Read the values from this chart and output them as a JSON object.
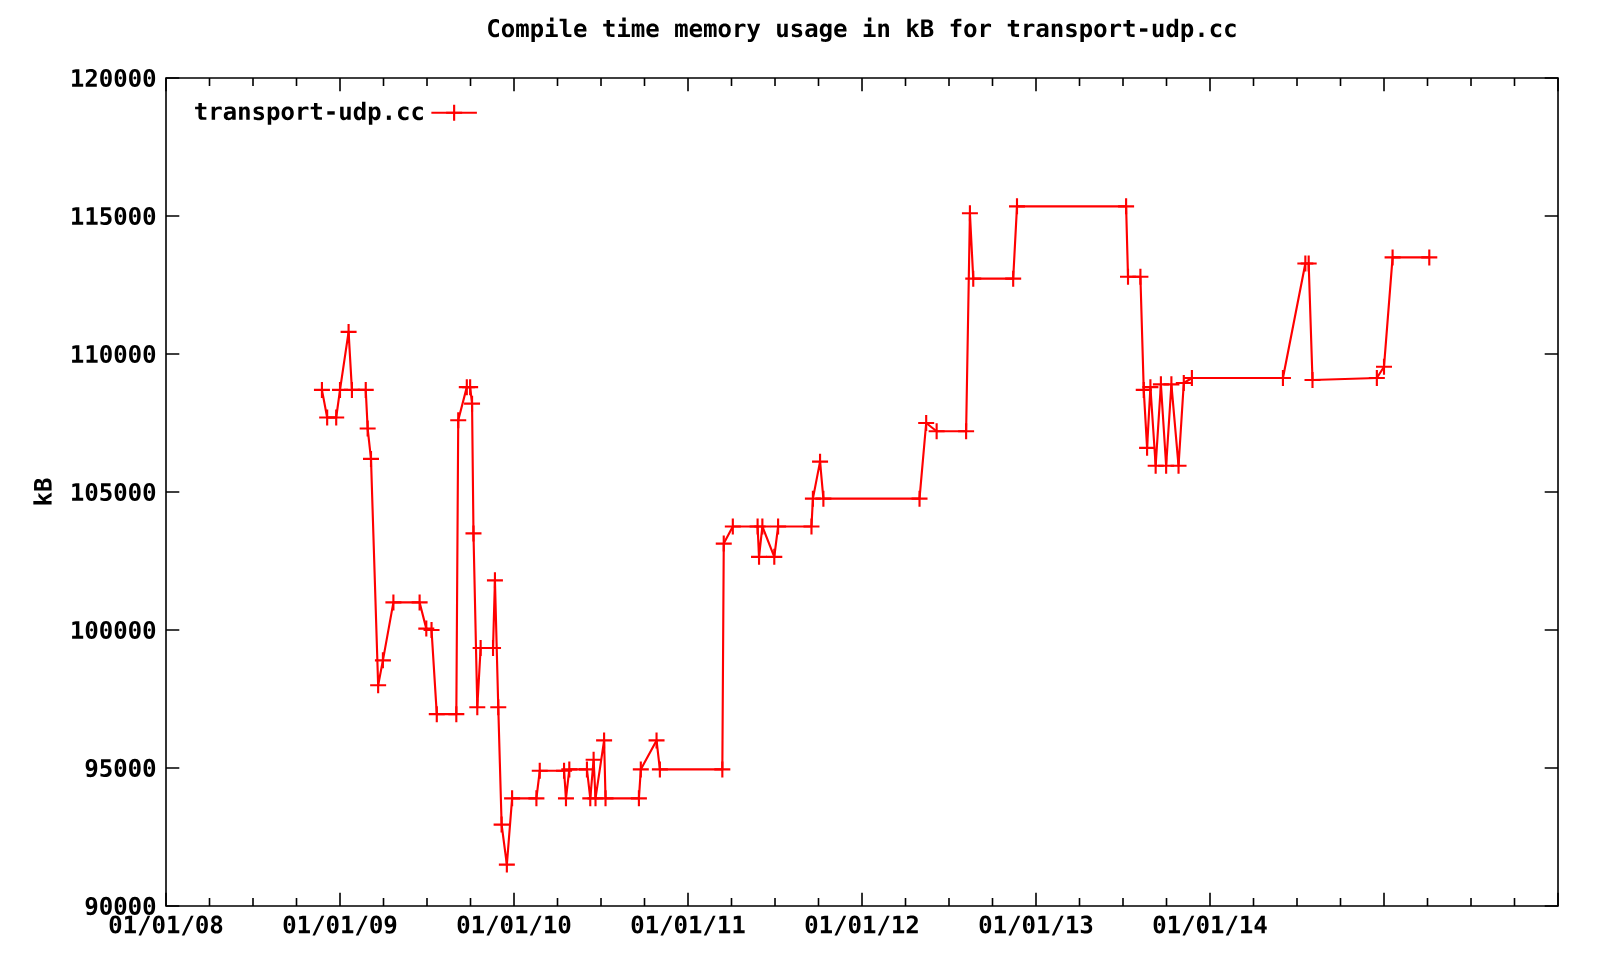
{
  "chart_data": {
    "type": "line",
    "title": "Compile time memory usage in kB for transport-udp.cc",
    "ylabel": "kB",
    "x": [
      "2008-11-24",
      "2008-12-05",
      "2008-12-24",
      "2009-01-01",
      "2009-01-19",
      "2009-01-26",
      "2009-02-24",
      "2009-02-28",
      "2009-03-07",
      "2009-03-22",
      "2009-04-01",
      "2009-04-23",
      "2009-06-17",
      "2009-07-01",
      "2009-07-12",
      "2009-07-23",
      "2009-09-02",
      "2009-09-06",
      "2009-09-24",
      "2009-10-01",
      "2009-10-05",
      "2009-10-08",
      "2009-10-16",
      "2009-10-23",
      "2009-11-18",
      "2009-11-22",
      "2009-11-29",
      "2009-12-06",
      "2009-12-17",
      "2009-12-28",
      "2010-02-17",
      "2010-02-24",
      "2010-04-16",
      "2010-04-20",
      "2010-04-27",
      "2010-06-03",
      "2010-06-10",
      "2010-06-17",
      "2010-06-21",
      "2010-07-09",
      "2010-07-12",
      "2010-09-20",
      "2010-09-24",
      "2010-10-27",
      "2010-11-03",
      "2011-03-14",
      "2011-03-17",
      "2011-04-05",
      "2011-05-27",
      "2011-05-30",
      "2011-06-06",
      "2011-07-01",
      "2011-07-09",
      "2011-09-17",
      "2011-09-20",
      "2011-10-05",
      "2011-10-12",
      "2012-05-01",
      "2012-05-15",
      "2012-06-06",
      "2012-08-07",
      "2012-08-15",
      "2012-08-22",
      "2012-11-14",
      "2012-11-22",
      "2013-07-09",
      "2013-07-13",
      "2013-08-08",
      "2013-08-15",
      "2013-08-22",
      "2013-08-29",
      "2013-09-09",
      "2013-09-20",
      "2013-10-01",
      "2013-10-12",
      "2013-10-27",
      "2013-11-07",
      "2013-11-24",
      "2014-06-03",
      "2014-07-20",
      "2014-07-27",
      "2014-08-04",
      "2014-12-17",
      "2015-01-01",
      "2015-01-19",
      "2015-04-06"
    ],
    "series": [
      {
        "name": "transport-udp.cc",
        "color": "#ff0000",
        "values": [
          108700,
          107700,
          107700,
          108700,
          110800,
          108700,
          108700,
          107300,
          106200,
          98000,
          98900,
          101000,
          101000,
          100050,
          100000,
          96950,
          96950,
          107600,
          108800,
          108800,
          108200,
          103500,
          97200,
          99350,
          99350,
          101800,
          97200,
          92950,
          91500,
          93900,
          93900,
          94900,
          94900,
          93900,
          94950,
          94950,
          93900,
          95300,
          93900,
          96000,
          93900,
          93900,
          94950,
          96000,
          94950,
          94950,
          103130,
          103750,
          103750,
          102650,
          103750,
          102650,
          103750,
          103750,
          104760,
          106100,
          104760,
          104760,
          107500,
          107200,
          107200,
          115100,
          112730,
          112730,
          115350,
          115350,
          112800,
          112800,
          108700,
          106600,
          108800,
          105950,
          108900,
          105950,
          108900,
          105950,
          108950,
          109130,
          109130,
          113280,
          113280,
          109060,
          109130,
          109540,
          113500,
          113500
        ]
      }
    ],
    "xlim": [
      "2008-01-01",
      "2016-01-01"
    ],
    "xticks": [
      {
        "value": "2008-01-01",
        "label": "01/01/08"
      },
      {
        "value": "2009-01-01",
        "label": "01/01/09"
      },
      {
        "value": "2010-01-01",
        "label": "01/01/10"
      },
      {
        "value": "2011-01-01",
        "label": "01/01/11"
      },
      {
        "value": "2012-01-01",
        "label": "01/01/12"
      },
      {
        "value": "2013-01-01",
        "label": "01/01/13"
      },
      {
        "value": "2014-01-01",
        "label": "01/01/14"
      },
      {
        "value": "2015-01-01",
        "label": null
      },
      {
        "value": "2016-01-01",
        "label": null
      }
    ],
    "ylim": [
      90000,
      120000
    ],
    "yticks": [
      90000,
      95000,
      100000,
      105000,
      110000,
      115000,
      120000
    ],
    "grid": false,
    "legend": "top left",
    "marker": "cross",
    "line_style": "solid"
  }
}
